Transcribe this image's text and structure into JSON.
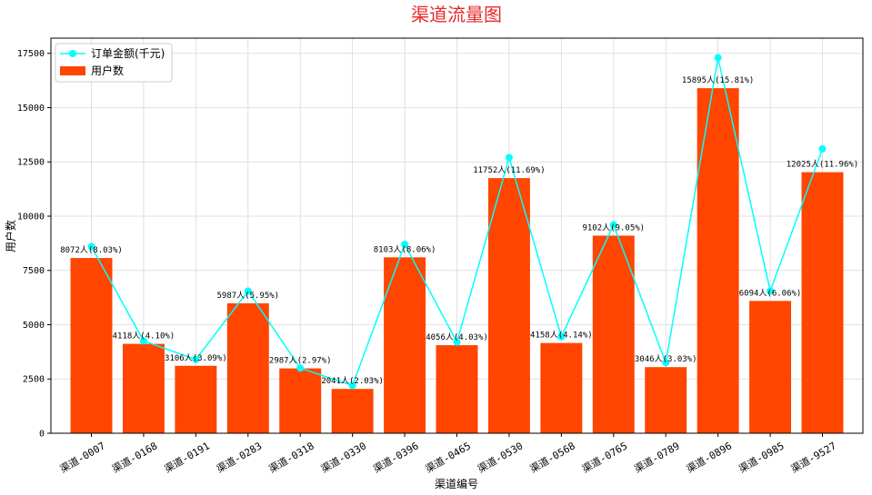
{
  "chart_data": {
    "type": "bar",
    "title": "渠道流量图",
    "xlabel": "渠道编号",
    "ylabel": "用户数",
    "ylim": [
      0,
      18200
    ],
    "yticks": [
      0,
      2500,
      5000,
      7500,
      10000,
      12500,
      15000,
      17500
    ],
    "grid": true,
    "legend_position": "top-left",
    "categories": [
      "渠道-0007",
      "渠道-0168",
      "渠道-0191",
      "渠道-0283",
      "渠道-0318",
      "渠道-0330",
      "渠道-0396",
      "渠道-0465",
      "渠道-0530",
      "渠道-0568",
      "渠道-0765",
      "渠道-0789",
      "渠道-0896",
      "渠道-0985",
      "渠道-9527"
    ],
    "series": [
      {
        "name": "用户数",
        "kind": "bar",
        "color": "#ff4500",
        "values": [
          8072,
          4118,
          3106,
          5987,
          2987,
          2041,
          8103,
          4056,
          11752,
          4158,
          9102,
          3046,
          15895,
          6094,
          12025
        ],
        "labels": [
          "8072人(8.03%)",
          "4118人(4.10%)",
          "3106人(3.09%)",
          "5987人(5.95%)",
          "2987人(2.97%)",
          "2041人(2.03%)",
          "8103人(8.06%)",
          "4056人(4.03%)",
          "11752人(11.69%)",
          "4158人(4.14%)",
          "9102人(9.05%)",
          "3046人(3.03%)",
          "15895人(15.81%)",
          "6094人(6.06%)",
          "12025人(11.96%)"
        ]
      },
      {
        "name": "订单金额(千元)",
        "kind": "line",
        "color": "#00ffff",
        "values": [
          8600,
          4250,
          3400,
          6550,
          3000,
          2200,
          8700,
          4200,
          12700,
          4450,
          9600,
          3250,
          17300,
          6550,
          13100
        ]
      }
    ]
  }
}
